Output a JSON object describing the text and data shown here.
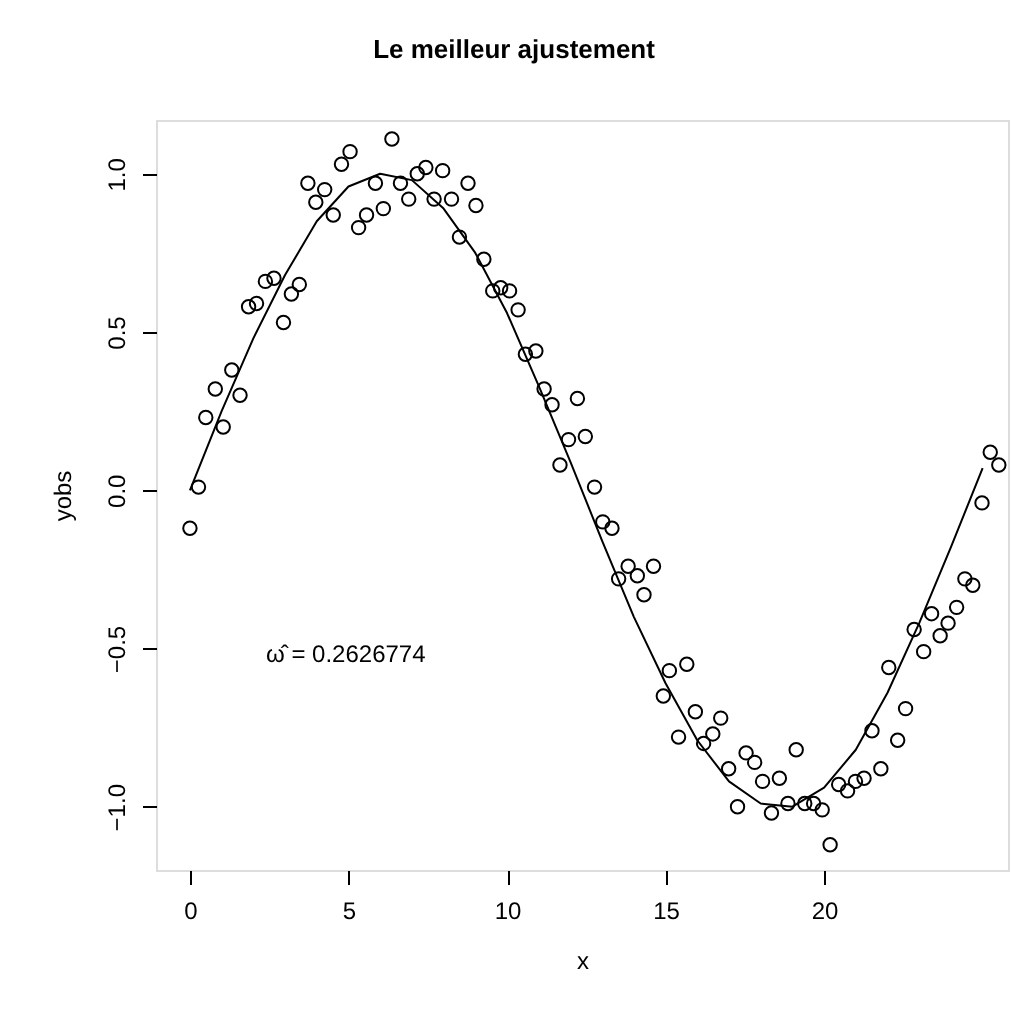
{
  "chart_data": {
    "type": "scatter",
    "title": "Le meilleur ajustement",
    "xlabel": "x",
    "ylabel": "yobs",
    "xlim": [
      -1.07,
      25.8
    ],
    "ylim": [
      -1.2,
      1.17
    ],
    "xticks": [
      0,
      5,
      10,
      15,
      20
    ],
    "yticks": [
      {
        "value": -1.0,
        "label": "−1.0"
      },
      {
        "value": -0.5,
        "label": "−0.5"
      },
      {
        "value": 0.0,
        "label": "0.0"
      },
      {
        "value": 0.5,
        "label": "0.5"
      },
      {
        "value": 1.0,
        "label": "1.0"
      }
    ],
    "grid": false,
    "marker": "circle",
    "annotations": [
      "ω̂ = 0.2626774"
    ],
    "series": [
      {
        "type": "scatter",
        "color": "#000000",
        "x": [
          0.0,
          0.27,
          0.5,
          0.8,
          1.05,
          1.32,
          1.58,
          1.85,
          2.1,
          2.38,
          2.65,
          2.95,
          3.2,
          3.45,
          3.72,
          3.97,
          4.25,
          4.52,
          4.78,
          5.05,
          5.32,
          5.57,
          5.85,
          6.1,
          6.37,
          6.64,
          6.9,
          7.17,
          7.44,
          7.7,
          7.97,
          8.25,
          8.5,
          8.77,
          9.02,
          9.27,
          9.55,
          9.8,
          10.08,
          10.35,
          10.58,
          10.91,
          11.17,
          11.42,
          11.67,
          11.94,
          12.22,
          12.47,
          12.76,
          13.02,
          13.31,
          13.52,
          13.82,
          14.11,
          14.32,
          14.62,
          14.93,
          15.12,
          15.41,
          15.67,
          15.94,
          16.2,
          16.49,
          16.74,
          16.99,
          17.27,
          17.54,
          17.81,
          18.06,
          18.34,
          18.59,
          18.86,
          19.12,
          19.39,
          19.67,
          19.94,
          20.19,
          20.46,
          20.74,
          20.99,
          21.26,
          21.51,
          21.79,
          22.04,
          22.32,
          22.57,
          22.84,
          23.14,
          23.39,
          23.66,
          23.91,
          24.18,
          24.44,
          24.69,
          24.98,
          25.24,
          25.51
        ],
        "values": [
          -0.12,
          0.01,
          0.23,
          0.32,
          0.2,
          0.38,
          0.3,
          0.58,
          0.59,
          0.66,
          0.67,
          0.53,
          0.62,
          0.65,
          0.97,
          0.91,
          0.95,
          0.87,
          1.03,
          1.07,
          0.83,
          0.87,
          0.97,
          0.89,
          1.11,
          0.97,
          0.92,
          1.0,
          1.02,
          0.92,
          1.01,
          0.92,
          0.8,
          0.97,
          0.9,
          0.73,
          0.63,
          0.64,
          0.63,
          0.57,
          0.43,
          0.44,
          0.32,
          0.27,
          0.08,
          0.16,
          0.29,
          0.17,
          0.01,
          -0.1,
          -0.12,
          -0.28,
          -0.24,
          -0.27,
          -0.33,
          -0.24,
          -0.65,
          -0.57,
          -0.78,
          -0.55,
          -0.7,
          -0.8,
          -0.77,
          -0.72,
          -0.88,
          -1.0,
          -0.83,
          -0.86,
          -0.92,
          -1.02,
          -0.91,
          -0.99,
          -0.82,
          -0.99,
          -0.99,
          -1.01,
          -1.12,
          -0.93,
          -0.95,
          -0.92,
          -0.91,
          -0.76,
          -0.88,
          -0.56,
          -0.79,
          -0.69,
          -0.44,
          -0.51,
          -0.39,
          -0.46,
          -0.42,
          -0.37,
          -0.28,
          -0.3,
          -0.04,
          0.12,
          0.08
        ]
      },
      {
        "type": "line",
        "color": "#000000",
        "marker": "none",
        "line_style": "solid",
        "x": [
          0,
          1,
          2,
          3,
          4,
          5,
          6,
          7,
          8,
          9,
          10,
          11,
          12,
          13,
          14,
          15,
          16,
          17,
          18,
          19,
          20,
          21,
          22,
          23,
          24,
          25
        ],
        "values": [
          0,
          0.25,
          0.48,
          0.68,
          0.85,
          0.96,
          1.0,
          0.98,
          0.89,
          0.75,
          0.56,
          0.33,
          0.09,
          -0.16,
          -0.4,
          -0.61,
          -0.79,
          -0.92,
          -0.99,
          -1.0,
          -0.94,
          -0.82,
          -0.64,
          -0.42,
          -0.18,
          0.07
        ]
      }
    ]
  }
}
